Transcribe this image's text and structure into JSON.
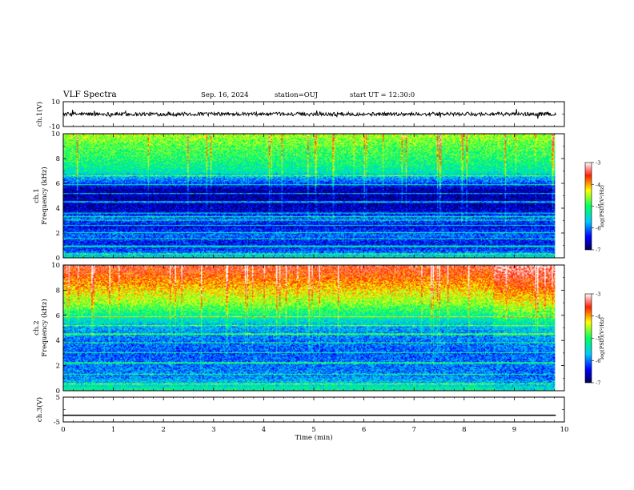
{
  "header": {
    "title": "VLF Spectra",
    "date": "Sep. 16, 2024",
    "station": "station=OUJ",
    "start": "start UT =  12:30:0"
  },
  "chart_data": [
    {
      "type": "line",
      "name": "ch1-waveform",
      "ylabel": "ch.1(V)",
      "ylim": [
        -10,
        10
      ],
      "yticks": [
        "-10",
        "10"
      ],
      "xlim": [
        0,
        10
      ],
      "level": 0,
      "noise_amplitude": 1.5
    },
    {
      "type": "heatmap",
      "name": "ch1-spectrogram",
      "ylabel_channel": "ch.1",
      "ylabel": "Frequency (kHz)",
      "ylim": [
        0,
        10
      ],
      "yticks": [
        "0",
        "2",
        "4",
        "6",
        "8",
        "10"
      ],
      "xlim": [
        0,
        10
      ],
      "colorbar": {
        "label": "log(PSD)(V²/Hz)",
        "ticks": [
          "-3",
          "-4",
          "-5",
          "-6",
          "-7"
        ],
        "range": [
          -7,
          -3
        ]
      },
      "level_profile": [
        {
          "f": 0,
          "v": -5.4
        },
        {
          "f": 0.6,
          "v": -6.2
        },
        {
          "f": 1.2,
          "v": -6.4
        },
        {
          "f": 1.8,
          "v": -6.0
        },
        {
          "f": 2.5,
          "v": -6.5
        },
        {
          "f": 3.2,
          "v": -6.0
        },
        {
          "f": 3.8,
          "v": -6.6
        },
        {
          "f": 4.5,
          "v": -6.7
        },
        {
          "f": 5.5,
          "v": -6.7
        },
        {
          "f": 6.2,
          "v": -6.0
        },
        {
          "f": 7.0,
          "v": -5.3
        },
        {
          "f": 8.0,
          "v": -5.0
        },
        {
          "f": 9.0,
          "v": -4.8
        },
        {
          "f": 10.0,
          "v": -4.5
        }
      ],
      "emission_lines_khz": [
        0.3,
        0.9,
        1.5,
        2.0,
        2.6,
        3.0,
        3.3,
        3.6,
        4.5,
        5.2,
        5.9,
        6.6
      ]
    },
    {
      "type": "heatmap",
      "name": "ch2-spectrogram",
      "ylabel_channel": "ch.2",
      "ylabel": "Frequency (kHz)",
      "ylim": [
        0,
        10
      ],
      "yticks": [
        "0",
        "2",
        "4",
        "6",
        "8",
        "10"
      ],
      "xlim": [
        0,
        10
      ],
      "colorbar": {
        "label": "log(PSD)(V²/Hz)",
        "ticks": [
          "-3",
          "-4",
          "-5",
          "-6",
          "-7"
        ],
        "range": [
          -7,
          -3
        ]
      },
      "level_profile": [
        {
          "f": 0,
          "v": -5.2
        },
        {
          "f": 1.0,
          "v": -5.9
        },
        {
          "f": 2.0,
          "v": -6.0
        },
        {
          "f": 3.0,
          "v": -6.1
        },
        {
          "f": 4.0,
          "v": -6.0
        },
        {
          "f": 5.0,
          "v": -5.8
        },
        {
          "f": 6.0,
          "v": -5.2
        },
        {
          "f": 7.0,
          "v": -4.6
        },
        {
          "f": 8.0,
          "v": -4.2
        },
        {
          "f": 9.0,
          "v": -3.8
        },
        {
          "f": 10.0,
          "v": -3.5
        }
      ],
      "emission_lines_khz": [
        0.5,
        1.3,
        2.2,
        3.0,
        3.8,
        4.5,
        5.2,
        5.9
      ]
    },
    {
      "type": "line",
      "name": "ch3-waveform",
      "ylabel": "ch.3(V)",
      "ylim": [
        -5,
        5
      ],
      "yticks": [
        "-5",
        "5"
      ],
      "xlim": [
        0,
        10
      ],
      "level": -2.3,
      "noise_amplitude": 0
    }
  ],
  "xaxis": {
    "label": "Time (min)",
    "ticks": [
      "0",
      "1",
      "2",
      "3",
      "4",
      "5",
      "6",
      "7",
      "8",
      "9",
      "10"
    ],
    "data_end_min": 9.83
  }
}
